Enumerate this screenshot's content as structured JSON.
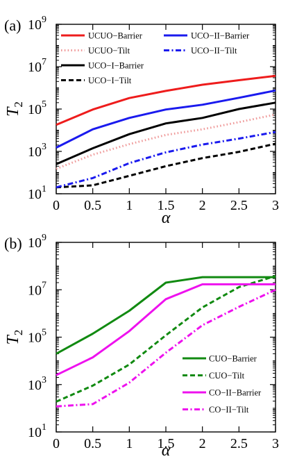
{
  "chart_data": [
    {
      "type": "line",
      "panel_label": "(a)",
      "xlabel": "α",
      "ylabel_base": "T",
      "ylabel_sub": "2",
      "x": [
        0,
        0.5,
        1,
        1.5,
        2,
        2.5,
        3
      ],
      "xlim": [
        0,
        3
      ],
      "ylim": [
        10,
        1000000000
      ],
      "yscale": "log",
      "xticks": [
        "0",
        "0.5",
        "1",
        "1.5",
        "2",
        "2.5",
        "3"
      ],
      "yticks": [
        {
          "base": "10",
          "exp": "1"
        },
        {
          "base": "10",
          "exp": "3"
        },
        {
          "base": "10",
          "exp": "5"
        },
        {
          "base": "10",
          "exp": "7"
        },
        {
          "base": "10",
          "exp": "9"
        }
      ],
      "grid": false,
      "legend": "top",
      "legend_columns": 2,
      "series": [
        {
          "name": "UCUO−Barrier",
          "color": "#ee1c1c",
          "style": "solid",
          "values": [
            18000,
            95000,
            330000,
            720000,
            1400000,
            2300000,
            3700000
          ]
        },
        {
          "name": "UCUO−Tilt",
          "color": "#ef9a9a",
          "style": "dotted",
          "values": [
            150,
            700,
            2200,
            6000,
            11000,
            24000,
            55000
          ]
        },
        {
          "name": "UCO−I−Barrier",
          "color": "#000000",
          "style": "solid",
          "values": [
            250,
            1400,
            6500,
            21000,
            38000,
            100000,
            200000
          ]
        },
        {
          "name": "UCO−I−Tilt",
          "color": "#000000",
          "style": "dashed",
          "values": [
            20,
            25,
            70,
            200,
            480,
            950,
            2300
          ]
        },
        {
          "name": "UCO−II−Barrier",
          "color": "#1a1aee",
          "style": "solid",
          "values": [
            1500,
            11000,
            38000,
            95000,
            160000,
            340000,
            750000
          ]
        },
        {
          "name": "UCO−II−Tilt",
          "color": "#1a1aee",
          "style": "dashdot",
          "values": [
            20,
            55,
            280,
            900,
            2100,
            4000,
            8200
          ]
        }
      ]
    },
    {
      "type": "line",
      "panel_label": "(b)",
      "xlabel": "α",
      "ylabel_base": "T",
      "ylabel_sub": "2",
      "x": [
        0,
        0.5,
        1,
        1.5,
        2,
        2.5,
        3
      ],
      "xlim": [
        0,
        3
      ],
      "ylim": [
        10,
        1000000000
      ],
      "yscale": "log",
      "xticks": [
        "0",
        "0.5",
        "1",
        "1.5",
        "2",
        "2.5",
        "3"
      ],
      "yticks": [
        {
          "base": "10",
          "exp": "1"
        },
        {
          "base": "10",
          "exp": "3"
        },
        {
          "base": "10",
          "exp": "5"
        },
        {
          "base": "10",
          "exp": "7"
        },
        {
          "base": "10",
          "exp": "9"
        }
      ],
      "grid": false,
      "legend": "bottom-right",
      "legend_columns": 1,
      "series": [
        {
          "name": "CUO−Barrier",
          "color": "#118a11",
          "style": "solid",
          "values": [
            20000,
            140000,
            1300000,
            20000000,
            34000000,
            34000000,
            34000000
          ]
        },
        {
          "name": "CUO−Tilt",
          "color": "#118a11",
          "style": "dashed",
          "values": [
            190,
            900,
            7000,
            120000,
            1800000,
            13000000,
            38000000
          ]
        },
        {
          "name": "CO−II−Barrier",
          "color": "#ee11ee",
          "style": "solid",
          "values": [
            2500,
            14000,
            180000,
            4000000,
            17000000,
            17000000,
            17000000
          ]
        },
        {
          "name": "CO−II−Tilt",
          "color": "#ee11ee",
          "style": "dashdot",
          "values": [
            120,
            150,
            1200,
            22000,
            320000,
            1900000,
            10000000
          ]
        }
      ]
    }
  ]
}
